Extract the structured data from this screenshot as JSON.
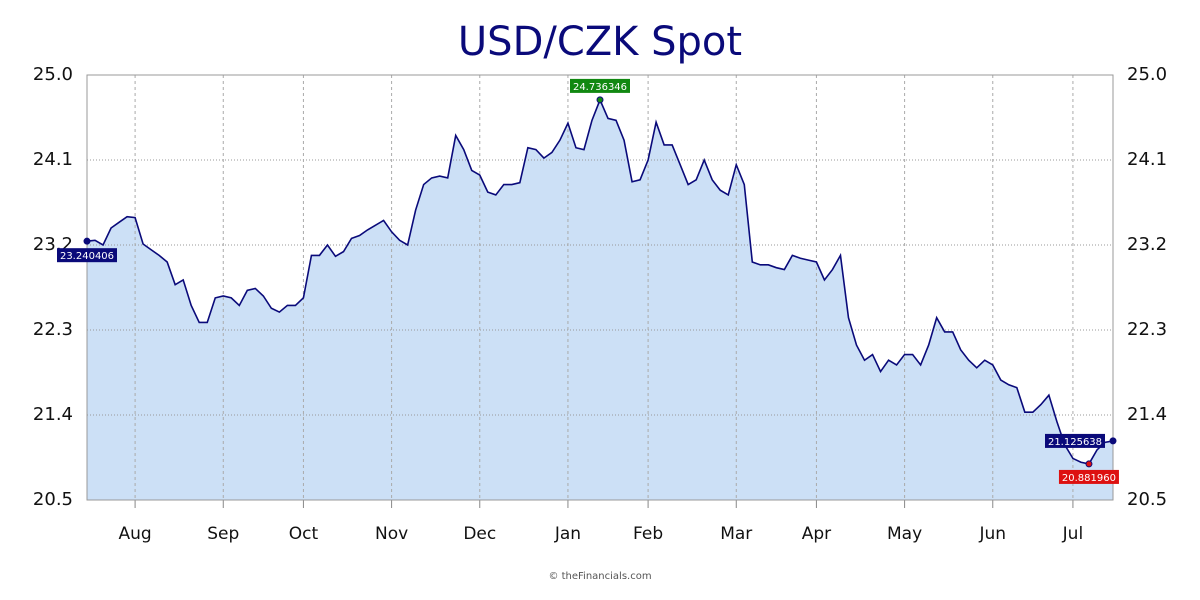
{
  "chart_data": {
    "type": "area",
    "title": "USD/CZK Spot",
    "credit": "© theFinancials.com",
    "categories": [
      null,
      null,
      null,
      null,
      null,
      null,
      "Aug",
      null,
      null,
      null,
      null,
      null,
      null,
      null,
      null,
      null,
      null,
      "Sep",
      null,
      null,
      null,
      null,
      null,
      null,
      null,
      null,
      null,
      "Oct",
      null,
      null,
      null,
      null,
      null,
      null,
      null,
      null,
      null,
      null,
      "Nov",
      null,
      null,
      null,
      null,
      null,
      null,
      null,
      null,
      null,
      null,
      "Dec",
      null,
      null,
      null,
      null,
      null,
      null,
      null,
      null,
      null,
      null,
      "Jan",
      null,
      null,
      null,
      null,
      null,
      null,
      null,
      null,
      null,
      "Feb",
      null,
      null,
      null,
      null,
      null,
      null,
      null,
      null,
      null,
      null,
      "Mar",
      null,
      null,
      null,
      null,
      null,
      null,
      null,
      null,
      null,
      "Apr",
      null,
      null,
      null,
      null,
      null,
      null,
      null,
      null,
      null,
      null,
      "May",
      null,
      null,
      null,
      null,
      null,
      null,
      null,
      null,
      null,
      null,
      "Jun",
      null,
      null,
      null,
      null,
      null,
      null,
      null,
      null,
      null,
      "Jul",
      null,
      null,
      null,
      null,
      null
    ],
    "values": [
      23.240406,
      23.25,
      23.2,
      23.38,
      23.44,
      23.5,
      23.49,
      23.21,
      23.15,
      23.09,
      23.02,
      22.78,
      22.83,
      22.56,
      22.38,
      22.38,
      22.64,
      22.66,
      22.64,
      22.56,
      22.72,
      22.74,
      22.66,
      22.53,
      22.49,
      22.56,
      22.56,
      22.64,
      23.09,
      23.09,
      23.2,
      23.08,
      23.13,
      23.27,
      23.3,
      23.36,
      23.41,
      23.46,
      23.34,
      23.25,
      23.2,
      23.57,
      23.84,
      23.91,
      23.93,
      23.91,
      24.36,
      24.21,
      23.99,
      23.94,
      23.76,
      23.73,
      23.84,
      23.84,
      23.86,
      24.23,
      24.21,
      24.12,
      24.18,
      24.31,
      24.49,
      24.23,
      24.21,
      24.52,
      24.736346,
      24.54,
      24.52,
      24.31,
      23.87,
      23.89,
      24.1,
      24.5,
      24.26,
      24.26,
      24.05,
      23.84,
      23.89,
      24.1,
      23.89,
      23.78,
      23.73,
      24.05,
      23.84,
      23.02,
      22.99,
      22.99,
      22.96,
      22.94,
      23.09,
      23.06,
      23.04,
      23.02,
      22.83,
      22.94,
      23.09,
      22.43,
      22.14,
      21.98,
      22.04,
      21.86,
      21.98,
      21.93,
      22.04,
      22.04,
      21.93,
      22.14,
      22.43,
      22.28,
      22.28,
      22.09,
      21.98,
      21.9,
      21.98,
      21.93,
      21.77,
      21.72,
      21.69,
      21.43,
      21.43,
      21.51,
      21.61,
      21.33,
      21.08,
      20.94,
      20.9,
      20.88196,
      21.03,
      21.11,
      21.125638
    ],
    "value_labels": [
      "23.240406",
      null,
      null,
      null,
      null,
      null,
      null,
      null,
      null,
      null,
      null,
      null,
      null,
      null,
      null,
      null,
      null,
      null,
      null,
      null,
      null,
      null,
      null,
      null,
      null,
      null,
      null,
      null,
      null,
      null,
      null,
      null,
      null,
      null,
      null,
      null,
      null,
      null,
      null,
      null,
      null,
      null,
      null,
      null,
      null,
      null,
      null,
      null,
      null,
      null,
      null,
      null,
      null,
      null,
      null,
      null,
      null,
      null,
      null,
      null,
      null,
      null,
      null,
      null,
      "24.736346",
      null,
      null,
      null,
      null,
      null,
      null,
      null,
      null,
      null,
      null,
      null,
      null,
      null,
      null,
      null,
      null,
      null,
      null,
      null,
      null,
      null,
      null,
      null,
      null,
      null,
      null,
      null,
      null,
      null,
      null,
      null,
      null,
      null,
      null,
      null,
      null,
      null,
      null,
      null,
      null,
      null,
      null,
      null,
      null,
      null,
      null,
      null,
      null,
      null,
      null,
      null,
      null,
      null,
      null,
      null,
      null,
      null,
      null,
      null,
      null,
      "20.881960",
      null,
      null,
      "21.125638"
    ],
    "color": "#0a0a7a",
    "fill": "#cce0f6",
    "ylim": [
      20.5,
      25
    ],
    "yticks": [
      20.5,
      21.4,
      22.3,
      23.2,
      24.1,
      {
        "value": 25,
        "label": "25.0"
      }
    ],
    "grid": true,
    "right_axis": true
  }
}
